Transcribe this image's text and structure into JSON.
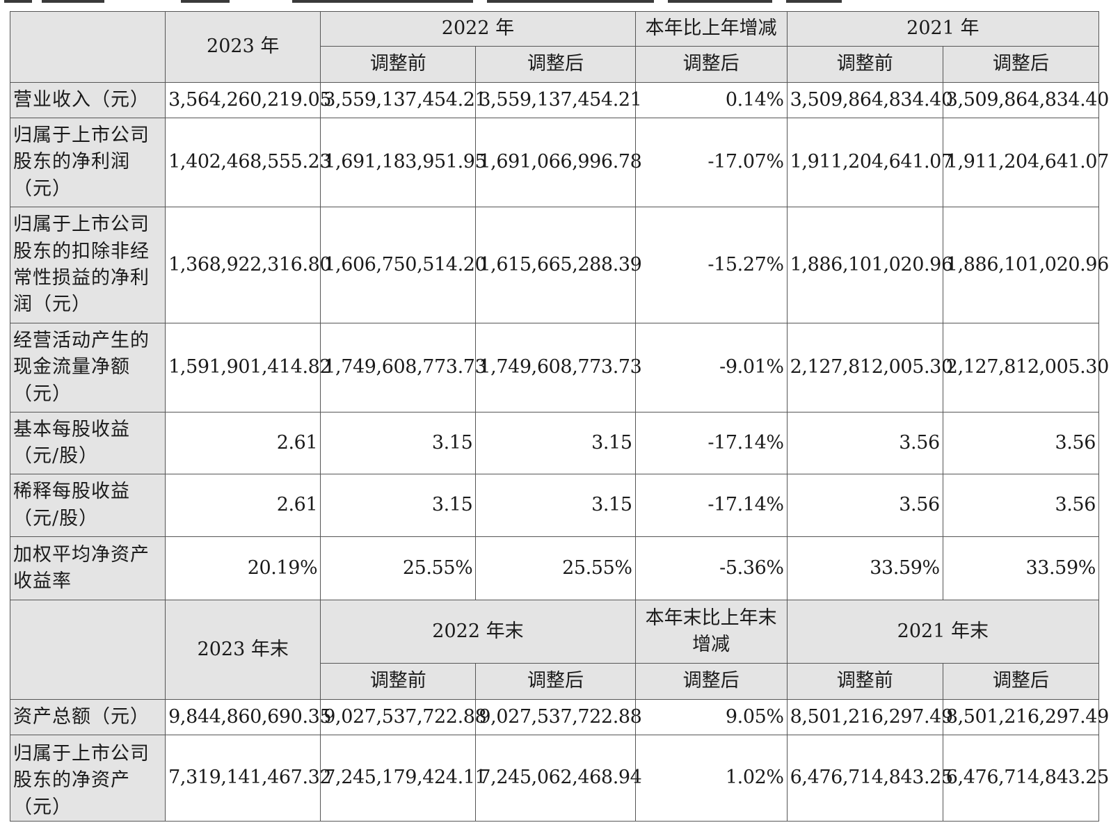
{
  "headers": {
    "y2023": "2023 年",
    "y2022": "2022 年",
    "change": "本年比上年增减",
    "y2021": "2021 年",
    "before": "调整前",
    "after": "调整后"
  },
  "rows": [
    {
      "label": "营业收入（元）",
      "v2023": "3,564,260,219.05",
      "v2022_before": "3,559,137,454.21",
      "v2022_after": "3,559,137,454.21",
      "change": "0.14%",
      "v2021_before": "3,509,864,834.40",
      "v2021_after": "3,509,864,834.40"
    },
    {
      "label": "归属于上市公司股东的净利润（元）",
      "v2023": "1,402,468,555.23",
      "v2022_before": "1,691,183,951.95",
      "v2022_after": "1,691,066,996.78",
      "change": "-17.07%",
      "v2021_before": "1,911,204,641.07",
      "v2021_after": "1,911,204,641.07"
    },
    {
      "label": "归属于上市公司股东的扣除非经常性损益的净利润（元）",
      "v2023": "1,368,922,316.80",
      "v2022_before": "1,606,750,514.20",
      "v2022_after": "1,615,665,288.39",
      "change": "-15.27%",
      "v2021_before": "1,886,101,020.96",
      "v2021_after": "1,886,101,020.96"
    },
    {
      "label": "经营活动产生的现金流量净额（元）",
      "v2023": "1,591,901,414.82",
      "v2022_before": "1,749,608,773.73",
      "v2022_after": "1,749,608,773.73",
      "change": "-9.01%",
      "v2021_before": "2,127,812,005.30",
      "v2021_after": "2,127,812,005.30"
    },
    {
      "label": "基本每股收益（元/股）",
      "v2023": "2.61",
      "v2022_before": "3.15",
      "v2022_after": "3.15",
      "change": "-17.14%",
      "v2021_before": "3.56",
      "v2021_after": "3.56"
    },
    {
      "label": "稀释每股收益（元/股）",
      "v2023": "2.61",
      "v2022_before": "3.15",
      "v2022_after": "3.15",
      "change": "-17.14%",
      "v2021_before": "3.56",
      "v2021_after": "3.56"
    },
    {
      "label": "加权平均净资产收益率",
      "v2023": "20.19%",
      "v2022_before": "25.55%",
      "v2022_after": "25.55%",
      "change": "-5.36%",
      "v2021_before": "33.59%",
      "v2021_after": "33.59%"
    }
  ],
  "headers2": {
    "y2023": "2023 年末",
    "y2022": "2022 年末",
    "change": "本年末比上年末增减",
    "y2021": "2021 年末",
    "before": "调整前",
    "after": "调整后"
  },
  "rows2": [
    {
      "label": "资产总额（元）",
      "v2023": "9,844,860,690.35",
      "v2022_before": "9,027,537,722.88",
      "v2022_after": "9,027,537,722.88",
      "change": "9.05%",
      "v2021_before": "8,501,216,297.49",
      "v2021_after": "8,501,216,297.49"
    },
    {
      "label": "归属于上市公司股东的净资产（元）",
      "v2023": "7,319,141,467.32",
      "v2022_before": "7,245,179,424.11",
      "v2022_after": "7,245,062,468.94",
      "change": "1.02%",
      "v2021_before": "6,476,714,843.25",
      "v2021_after": "6,476,714,843.25"
    }
  ]
}
